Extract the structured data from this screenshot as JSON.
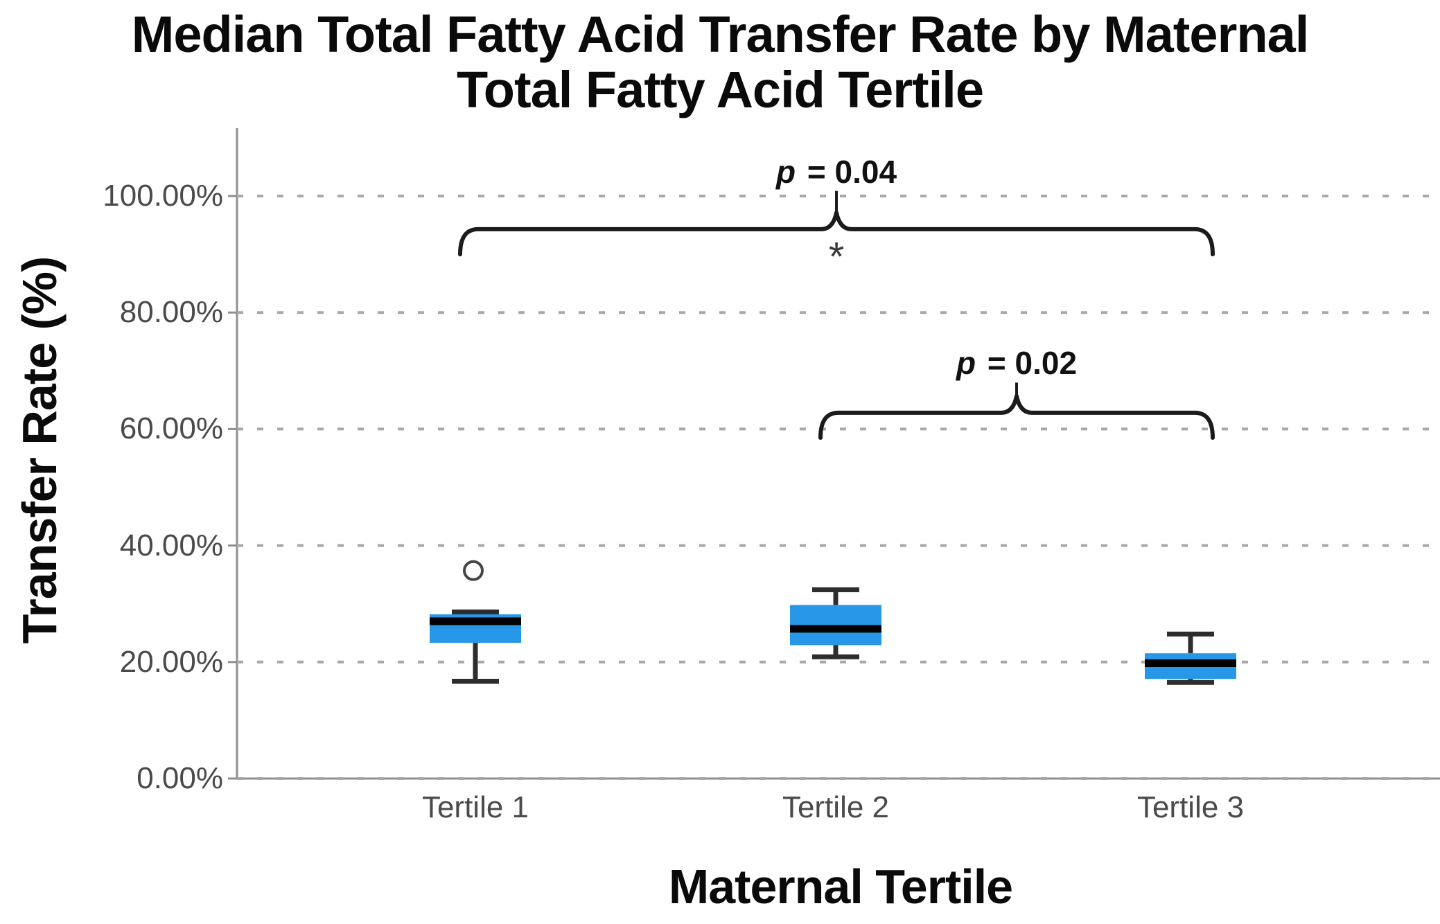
{
  "figure": {
    "background": "#ffffff"
  },
  "chart_data": {
    "type": "box",
    "title": "Median Total Fatty Acid Transfer Rate by Maternal Total Fatty Acid Tertile",
    "title_lines": [
      "Median Total Fatty Acid Transfer Rate by Maternal",
      "Total Fatty Acid Tertile"
    ],
    "xlabel": "Maternal Tertile",
    "ylabel": "Transfer Rate (%)",
    "units": "percent",
    "ylim": [
      0,
      112
    ],
    "grid": "horizontal dotted",
    "legend": null,
    "yticks": [
      {
        "value": 100,
        "label": "100.00%"
      },
      {
        "value": 80,
        "label": "80.00%"
      },
      {
        "value": 60,
        "label": "60.00%"
      },
      {
        "value": 40,
        "label": "40.00%"
      },
      {
        "value": 20,
        "label": "20.00%"
      },
      {
        "value": 0,
        "label": "0.00%"
      }
    ],
    "categories": [
      "Tertile 1",
      "Tertile 2",
      "Tertile 3"
    ],
    "boxes": [
      {
        "category": "Tertile 1",
        "whisker_low": 16.7,
        "q1": 23.3,
        "median": 27.0,
        "q3": 28.2,
        "whisker_high": 28.6,
        "outliers": [
          35.7
        ]
      },
      {
        "category": "Tertile 2",
        "whisker_low": 20.9,
        "q1": 22.9,
        "median": 25.7,
        "q3": 29.8,
        "whisker_high": 32.4,
        "outliers": []
      },
      {
        "category": "Tertile 3",
        "whisker_low": 16.5,
        "q1": 17.1,
        "median": 19.8,
        "q3": 21.5,
        "whisker_high": 24.8,
        "outliers": []
      }
    ],
    "annotations": [
      {
        "label": "p = 0.04",
        "label_italic": "p",
        "label_rest": " = 0.04",
        "from_index": 0,
        "to_index": 2,
        "line_value": 94.3,
        "end_drop": 4.3,
        "label_value": 104.2,
        "star": "*",
        "star_value": 91.0
      },
      {
        "label": "p = 0.02",
        "label_italic": "p",
        "label_rest": " = 0.02",
        "from_index": 1,
        "to_index": 2,
        "line_value": 62.8,
        "end_drop": 4.3,
        "label_value": 71.3,
        "star": null,
        "star_value": null
      }
    ],
    "colors": {
      "box_fill": "#2797e8",
      "median": "#000000",
      "whisker": "#2d2d2d",
      "outlier_stroke": "#454545",
      "axis": "#8f8f8f",
      "grid": "#a8a8a8",
      "bracket": "#1b1b1b",
      "tick_text": "#4a4a4a",
      "title_text": "#0a0a0a"
    }
  }
}
